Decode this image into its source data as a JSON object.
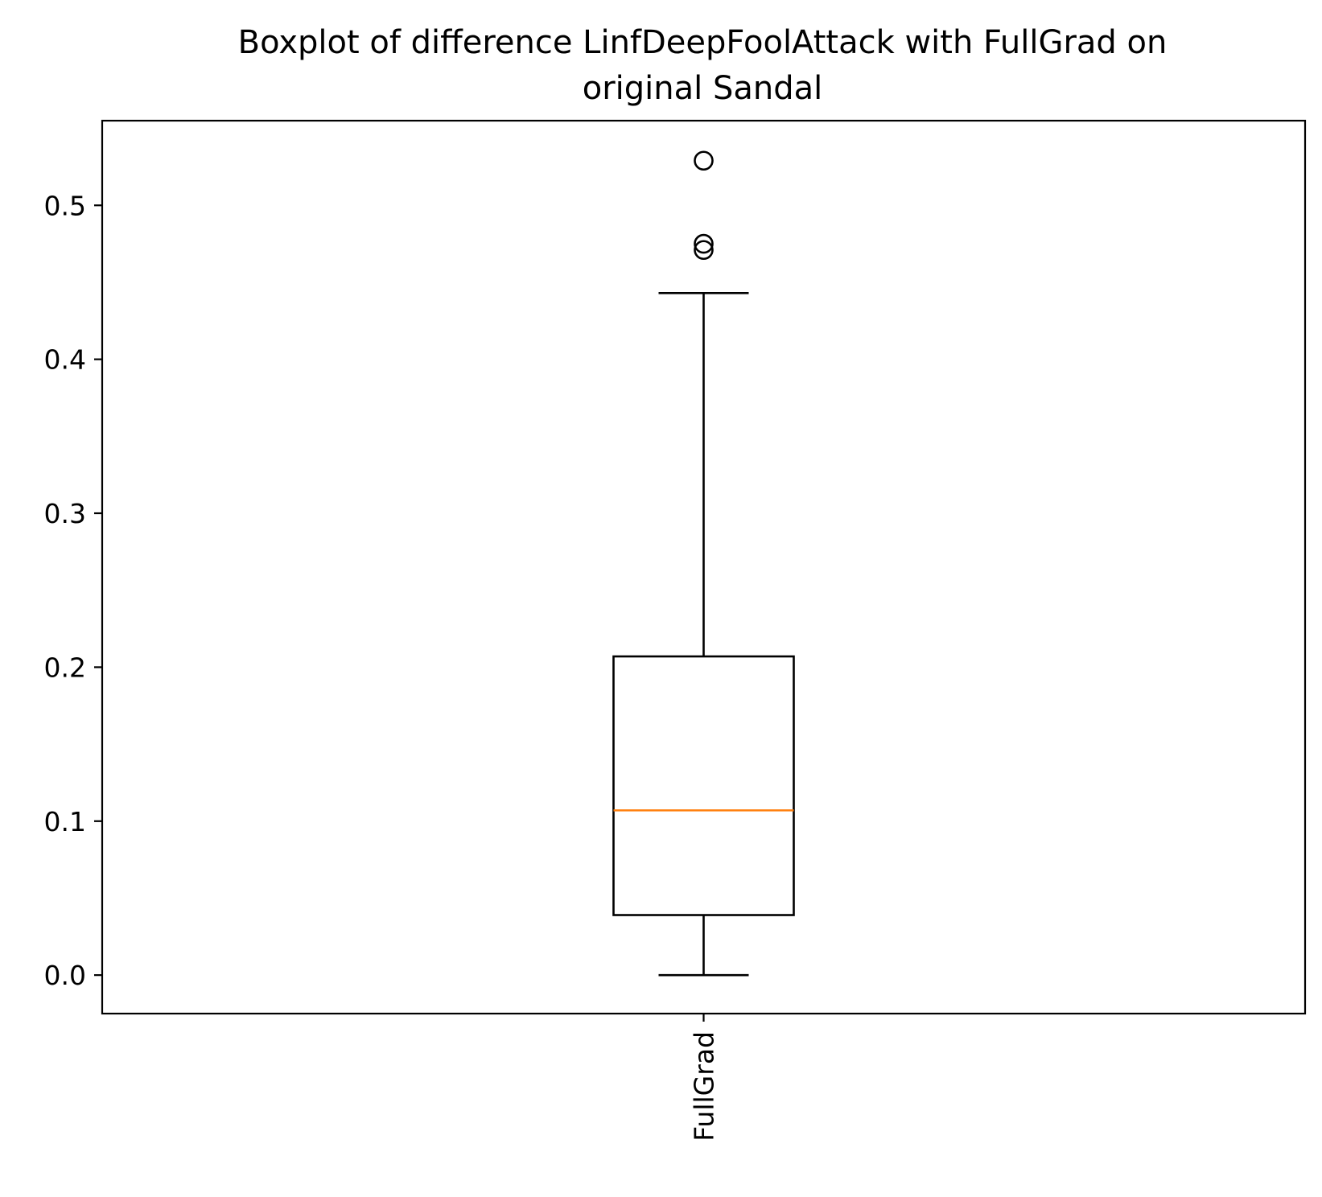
{
  "chart_data": {
    "type": "box",
    "title": "Boxplot of difference LinfDeepFoolAttack with FullGrad on\noriginal Sandal",
    "title_lines": [
      "Boxplot of difference LinfDeepFoolAttack with FullGrad on",
      "original Sandal"
    ],
    "xlabel": "",
    "ylabel": "",
    "ylim": [
      -0.025,
      0.555
    ],
    "y_ticks": [
      0.0,
      0.1,
      0.2,
      0.3,
      0.4,
      0.5
    ],
    "y_tick_labels": [
      "0.0",
      "0.1",
      "0.2",
      "0.3",
      "0.4",
      "0.5"
    ],
    "categories": [
      "FullGrad"
    ],
    "x_tick_rotation": 90,
    "grid": false,
    "boxes": [
      {
        "label": "FullGrad",
        "whisker_low": 0.0,
        "q1": 0.039,
        "median": 0.107,
        "q3": 0.207,
        "whisker_high": 0.443,
        "outliers": [
          0.529,
          0.475,
          0.471
        ]
      }
    ],
    "colors": {
      "box": "#000000",
      "median": "#ff7f0e",
      "axes": "#000000"
    }
  }
}
